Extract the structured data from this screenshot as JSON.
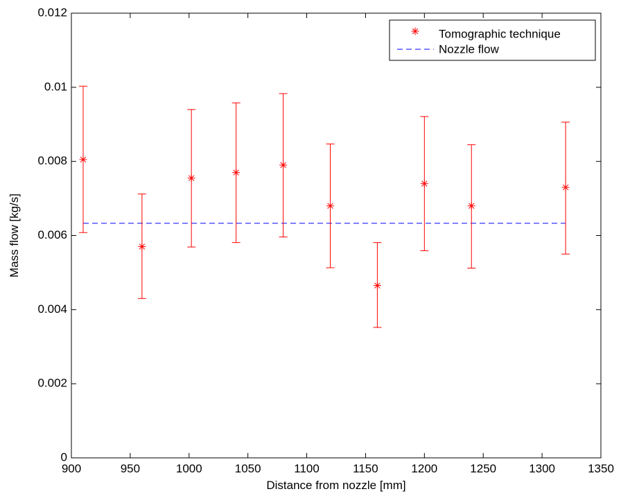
{
  "chart_data": {
    "type": "scatter",
    "xlabel": "Distance from nozzle [mm]",
    "ylabel": "Mass flow [kg/s]",
    "xlim": [
      900,
      1350
    ],
    "ylim": [
      0,
      0.012
    ],
    "x_ticks": [
      "900",
      "950",
      "1000",
      "1050",
      "1100",
      "1150",
      "1200",
      "1250",
      "1300",
      "1350"
    ],
    "y_ticks": [
      "0",
      "0.002",
      "0.004",
      "0.006",
      "0.008",
      "0.01",
      "0.012"
    ],
    "grid": false,
    "legend_position": "top-right",
    "series": [
      {
        "name": "Tomographic technique",
        "marker": "asterisk",
        "color": "#ff0000",
        "x": [
          910,
          960,
          1002,
          1040,
          1080,
          1120,
          1160,
          1200,
          1240,
          1320
        ],
        "y": [
          0.00805,
          0.0057,
          0.00755,
          0.0077,
          0.0079,
          0.0068,
          0.00465,
          0.0074,
          0.0068,
          0.0073
        ],
        "error_low": [
          0.00608,
          0.0043,
          0.00569,
          0.00581,
          0.00596,
          0.00513,
          0.00352,
          0.00559,
          0.00512,
          0.0055
        ],
        "error_high": [
          0.01003,
          0.00712,
          0.0094,
          0.00958,
          0.00983,
          0.00847,
          0.00581,
          0.00921,
          0.00845,
          0.00906
        ]
      },
      {
        "name": "Nozzle flow",
        "line_style": "dashed",
        "color": "#0000ff",
        "x": [
          910,
          1320
        ],
        "y": [
          0.00633,
          0.00633
        ]
      }
    ]
  }
}
